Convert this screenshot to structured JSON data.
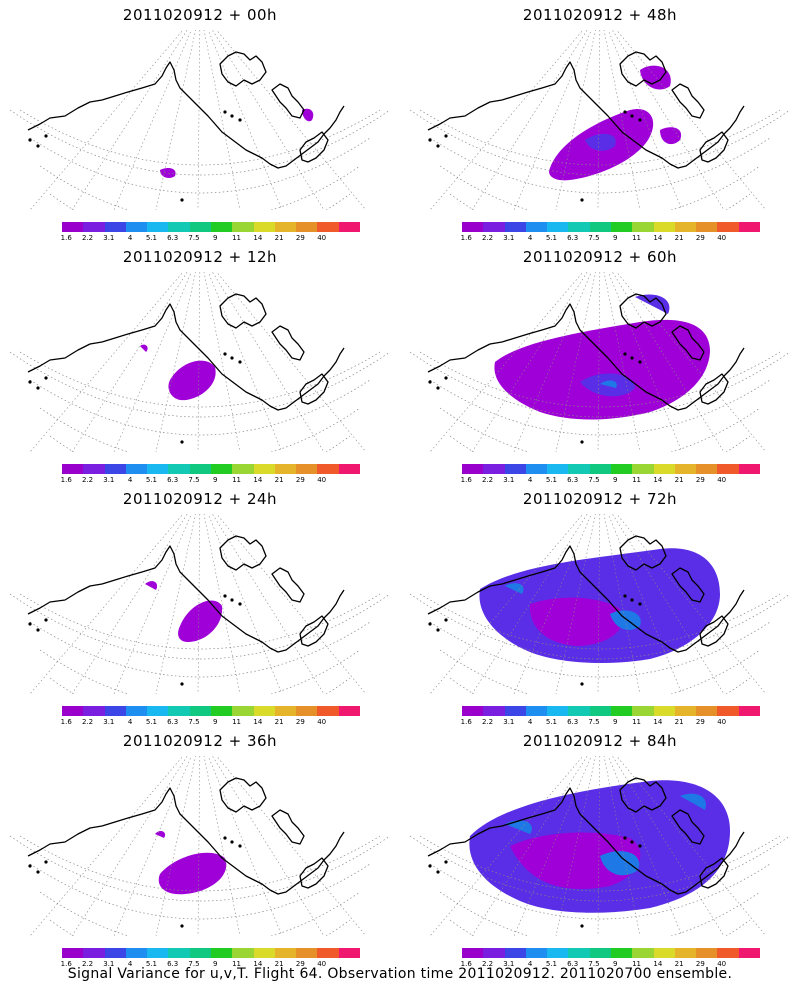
{
  "panels": [
    {
      "title": "2011020912 + 00h",
      "lead": 0
    },
    {
      "title": "2011020912 + 48h",
      "lead": 48
    },
    {
      "title": "2011020912 + 12h",
      "lead": 12
    },
    {
      "title": "2011020912 + 60h",
      "lead": 60
    },
    {
      "title": "2011020912 + 24h",
      "lead": 24
    },
    {
      "title": "2011020912 + 72h",
      "lead": 72
    },
    {
      "title": "2011020912 + 36h",
      "lead": 36
    },
    {
      "title": "2011020912 + 84h",
      "lead": 84
    }
  ],
  "colorbar": {
    "labels": [
      "1.6",
      "2.2",
      "3.1",
      "4",
      "5.1",
      "6.3",
      "7.5",
      "9",
      "11",
      "14",
      "21",
      "29",
      "40"
    ],
    "colors": [
      "#9a00cc",
      "#7a1ee0",
      "#3c46e6",
      "#1e8ef0",
      "#1ab8f0",
      "#12c9b4",
      "#10c880",
      "#22cc22",
      "#99d633",
      "#dada2a",
      "#e6b42a",
      "#e6902a",
      "#f05a2a",
      "#f0186e"
    ]
  },
  "caption": "Signal Variance for u,v,T. Flight 64. Observation time 2011020912. 2011020700 ensemble.",
  "colors": {
    "shade_light": "#a000d8",
    "shade_mid": "#5a2ee6",
    "shade_strong": "#1e78e6",
    "coast": "#000000",
    "grid": "#888888"
  }
}
